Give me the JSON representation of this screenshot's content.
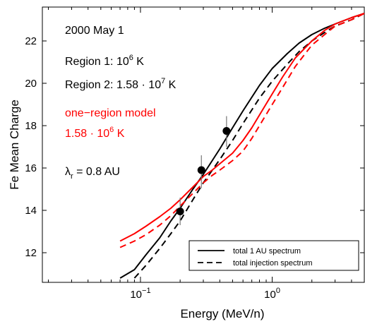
{
  "chart_data": {
    "type": "line",
    "xlabel": "Energy  (MeV/n)",
    "ylabel": "Fe  Mean  Charge",
    "xscale": "log",
    "xlim": [
      0.018,
      5
    ],
    "ylim": [
      10.6,
      23.6
    ],
    "grid": false,
    "x_ticks": [
      {
        "value": 0.1,
        "base": "10",
        "exp": "−1"
      },
      {
        "value": 1,
        "base": "10",
        "exp": "0"
      }
    ],
    "y_ticks": [
      12,
      14,
      16,
      18,
      20,
      22
    ],
    "annotations": {
      "date": "2000 May 1",
      "region1": {
        "prefix": "Region 1: 10",
        "exp": "6",
        "suffix": " K"
      },
      "region2": {
        "prefix": "Region 2: 1.58 · 10",
        "exp": "7",
        "suffix": " K"
      },
      "model_line1": "one−region model",
      "model_line2": {
        "prefix": "1.58 · 10",
        "exp": "6",
        "suffix": " K"
      },
      "model_color": "#ff0000",
      "lambda": {
        "symbol": "λ",
        "sub": "r",
        "suffix": " = 0.8 AU"
      }
    },
    "legend": {
      "placement": "bottom-right",
      "entries": [
        {
          "label": "total 1 AU spectrum",
          "style": "solid"
        },
        {
          "label": "total injection spectrum",
          "style": "dashed"
        }
      ]
    },
    "series": [
      {
        "color": "#000000",
        "style": "solid",
        "x": [
          0.07,
          0.09,
          0.11,
          0.14,
          0.17,
          0.2,
          0.25,
          0.3,
          0.4,
          0.5,
          0.6,
          0.8,
          1.0,
          1.3,
          1.6,
          2.0,
          2.5,
          3.0,
          4.0,
          5.0
        ],
        "y": [
          10.8,
          11.2,
          11.9,
          12.7,
          13.5,
          14.1,
          15.0,
          15.7,
          16.9,
          17.9,
          18.7,
          19.9,
          20.7,
          21.4,
          21.9,
          22.3,
          22.6,
          22.8,
          23.1,
          23.3
        ]
      },
      {
        "color": "#000000",
        "style": "dashed",
        "x": [
          0.09,
          0.11,
          0.14,
          0.17,
          0.2,
          0.25,
          0.3,
          0.4,
          0.5,
          0.6,
          0.8,
          1.0,
          1.3,
          1.6,
          2.0,
          2.5,
          3.0,
          4.0,
          5.0
        ],
        "y": [
          10.8,
          11.4,
          12.2,
          12.9,
          13.5,
          14.5,
          15.3,
          16.4,
          17.3,
          18.1,
          19.3,
          20.1,
          20.9,
          21.5,
          22.0,
          22.4,
          22.7,
          23.0,
          23.3
        ]
      },
      {
        "color": "#ff0000",
        "style": "solid",
        "x": [
          0.07,
          0.09,
          0.11,
          0.14,
          0.17,
          0.2,
          0.25,
          0.3,
          0.35,
          0.4,
          0.5,
          0.6,
          0.7,
          0.8,
          1.0,
          1.2,
          1.5,
          2.0,
          2.5,
          3.0,
          4.0,
          5.0
        ],
        "y": [
          12.55,
          12.9,
          13.25,
          13.7,
          14.1,
          14.5,
          15.1,
          15.6,
          15.9,
          16.2,
          16.7,
          17.3,
          17.9,
          18.5,
          19.5,
          20.3,
          21.2,
          22.0,
          22.5,
          22.8,
          23.1,
          23.3
        ]
      },
      {
        "color": "#ff0000",
        "style": "dashed",
        "x": [
          0.07,
          0.09,
          0.11,
          0.14,
          0.17,
          0.2,
          0.25,
          0.3,
          0.35,
          0.4,
          0.5,
          0.6,
          0.7,
          0.8,
          1.0,
          1.2,
          1.5,
          2.0,
          2.5,
          3.0,
          4.0,
          5.0
        ],
        "y": [
          12.25,
          12.55,
          12.85,
          13.3,
          13.75,
          14.2,
          14.8,
          15.3,
          15.65,
          15.9,
          16.35,
          16.8,
          17.4,
          18.0,
          19.0,
          19.8,
          20.8,
          21.8,
          22.3,
          22.7,
          23.0,
          23.3
        ]
      }
    ],
    "points": [
      {
        "x": 0.2,
        "y": 13.95,
        "err_low": 13.3,
        "err_high": 14.6
      },
      {
        "x": 0.29,
        "y": 15.9,
        "err_low": 15.05,
        "err_high": 16.6
      },
      {
        "x": 0.45,
        "y": 17.75,
        "err_low": 17.0,
        "err_high": 18.45
      }
    ]
  }
}
